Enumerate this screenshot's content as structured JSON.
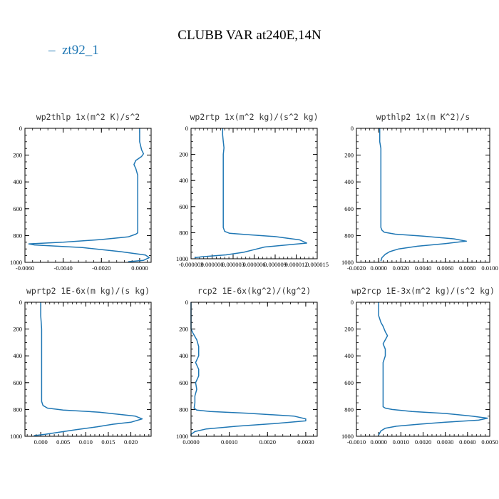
{
  "figure": {
    "title": "CLUBB VAR at240E,14N",
    "legend": {
      "line_symbol": "–",
      "label": "zt92_1",
      "color": "#1f77b4"
    }
  },
  "chart_data": [
    {
      "type": "line",
      "title": "wp2thlp  1x(m^2 K)/s^2",
      "xlim": [
        -0.006,
        0.0006
      ],
      "ylim": [
        0,
        1000
      ],
      "y_inverted": true,
      "xticks": [
        -0.006,
        -0.004,
        -0.002,
        0.0
      ],
      "xtick_labels": [
        "-0.0060",
        "-0.0040",
        "-0.0020",
        "0.0000"
      ],
      "yticks": [
        0,
        200,
        400,
        600,
        800,
        1000
      ],
      "ytick_labels": [
        "0",
        "200",
        "400",
        "600",
        "800",
        "1000"
      ],
      "series": [
        {
          "color": "#1f77b4",
          "x": [
            0.0,
            0.0,
            0.0,
            0.0001,
            0.0002,
            0.0001,
            -0.0002,
            -0.0003,
            -0.0002,
            -0.0001,
            -0.0001,
            -0.0001,
            -0.0001,
            -0.0001,
            -0.0001,
            -0.0001,
            -0.0001,
            -0.0002,
            -0.0006,
            -0.002,
            -0.004,
            -0.0058,
            -0.0055,
            -0.003,
            -0.001,
            0.0003,
            0.0005,
            0.0002,
            -0.0006
          ],
          "y": [
            0,
            50,
            100,
            160,
            190,
            210,
            240,
            270,
            300,
            350,
            400,
            450,
            500,
            600,
            700,
            750,
            780,
            790,
            810,
            830,
            850,
            862,
            870,
            890,
            920,
            945,
            965,
            985,
            995
          ]
        }
      ]
    },
    {
      "type": "line",
      "title": "wp2rtp  1x(m^2 kg)/(s^2 kg)",
      "xlim": [
        -3e-06,
        1.5e-05
      ],
      "ylim": [
        0,
        1000
      ],
      "y_inverted": true,
      "xticks": [
        -3e-06,
        0.0,
        3e-06,
        6e-06,
        9e-06,
        1.2e-05,
        1.5e-05
      ],
      "xtick_labels": [
        "-0.000003",
        "0.000000",
        "0.000003",
        "0.000006",
        "0.000009",
        "0.000012",
        "0.000015"
      ],
      "yticks": [
        0,
        200,
        400,
        600,
        800,
        1000
      ],
      "ytick_labels": [
        "0",
        "200",
        "400",
        "600",
        "800",
        "1000"
      ],
      "series": [
        {
          "color": "#1f77b4",
          "x": [
            1.5e-06,
            1.5e-06,
            1.6e-06,
            1.7e-06,
            1.6e-06,
            1.6e-06,
            1.6e-06,
            1.6e-06,
            1.6e-06,
            1.6e-06,
            1.6e-06,
            1.8e-06,
            2.5e-06,
            5e-06,
            9e-06,
            1.25e-05,
            1.35e-05,
            1.05e-05,
            7.5e-06,
            6e-06,
            4.5e-06,
            2e-06,
            -1.5e-06,
            -2.5e-06
          ],
          "y": [
            0,
            50,
            100,
            150,
            200,
            300,
            400,
            500,
            600,
            700,
            760,
            790,
            805,
            815,
            830,
            855,
            880,
            895,
            910,
            930,
            950,
            970,
            985,
            992
          ]
        }
      ]
    },
    {
      "type": "line",
      "title": "wpthlp2  1x(m K^2)/s",
      "xlim": [
        -0.002,
        0.01
      ],
      "ylim": [
        0,
        1000
      ],
      "y_inverted": true,
      "xticks": [
        -0.002,
        0.0,
        0.002,
        0.004,
        0.006,
        0.008,
        0.01
      ],
      "xtick_labels": [
        "-0.0020",
        "0.0000",
        "0.0020",
        "0.0040",
        "0.0060",
        "0.0080",
        "0.0100"
      ],
      "yticks": [
        0,
        200,
        400,
        600,
        800,
        1000
      ],
      "ytick_labels": [
        "0",
        "200",
        "400",
        "600",
        "800",
        "1000"
      ],
      "series": [
        {
          "color": "#1f77b4",
          "x": [
            0.0001,
            0.0001,
            0.0001,
            0.0002,
            0.0002,
            0.0002,
            0.0002,
            0.0002,
            0.0002,
            0.0002,
            0.0002,
            0.0002,
            0.0003,
            0.0005,
            0.0015,
            0.004,
            0.0068,
            0.0079,
            0.006,
            0.0035,
            0.0018,
            0.001,
            0.0006,
            0.0003,
            0.0002
          ],
          "y": [
            0,
            50,
            100,
            150,
            200,
            250,
            300,
            400,
            500,
            600,
            700,
            740,
            760,
            775,
            790,
            805,
            825,
            842,
            860,
            880,
            900,
            920,
            940,
            965,
            990
          ]
        }
      ]
    },
    {
      "type": "line",
      "title": "wprtp2  1E-6x(m kg)/(s kg)",
      "xlim": [
        -0.0035,
        0.0245
      ],
      "ylim": [
        0,
        1000
      ],
      "y_inverted": true,
      "xticks": [
        0.0,
        0.005,
        0.01,
        0.015,
        0.02
      ],
      "xtick_labels": [
        "0.000",
        "0.005",
        "0.010",
        "0.015",
        "0.020"
      ],
      "yticks": [
        0,
        200,
        400,
        600,
        800,
        1000
      ],
      "ytick_labels": [
        "0",
        "200",
        "400",
        "600",
        "800",
        "1000"
      ],
      "series": [
        {
          "color": "#1f77b4",
          "x": [
            0.0,
            0.0,
            0.0001,
            0.0002,
            0.0002,
            0.0002,
            0.0002,
            0.0002,
            0.0002,
            0.0002,
            0.0005,
            0.0015,
            0.005,
            0.013,
            0.021,
            0.0225,
            0.02,
            0.016,
            0.0125,
            0.008,
            0.004,
            0.001,
            -0.0015
          ],
          "y": [
            0,
            100,
            150,
            200,
            300,
            400,
            500,
            600,
            700,
            740,
            770,
            790,
            805,
            820,
            850,
            870,
            895,
            910,
            930,
            950,
            970,
            985,
            995
          ]
        }
      ]
    },
    {
      "type": "line",
      "title": "rcp2  1E-6x(kg^2)/(kg^2)",
      "xlim": [
        0.0,
        0.0033
      ],
      "ylim": [
        0,
        1000
      ],
      "y_inverted": true,
      "xticks": [
        0.0,
        0.001,
        0.002,
        0.003
      ],
      "xtick_labels": [
        "0.0000",
        "0.0010",
        "0.0020",
        "0.0030"
      ],
      "yticks": [
        0,
        200,
        400,
        600,
        800,
        1000
      ],
      "ytick_labels": [
        "0",
        "200",
        "400",
        "600",
        "800",
        "1000"
      ],
      "series": [
        {
          "color": "#1f77b4",
          "x": [
            0.0,
            0.0,
            0.0,
            5e-05,
            0.00015,
            0.0002,
            0.0002,
            0.00012,
            0.0002,
            0.0002,
            0.00012,
            0.00015,
            0.0001,
            0.0001,
            8e-05,
            0.00015,
            0.0005,
            0.0015,
            0.0027,
            0.003,
            0.003,
            0.0022,
            0.0012,
            0.0004,
            0.0001,
            0.0,
            0.0
          ],
          "y": [
            0,
            100,
            200,
            230,
            280,
            330,
            400,
            450,
            500,
            550,
            600,
            650,
            700,
            750,
            790,
            805,
            815,
            828,
            850,
            870,
            885,
            905,
            925,
            945,
            965,
            985,
            1000
          ]
        }
      ]
    },
    {
      "type": "line",
      "title": "wp2rcp  1E-3x(m^2 kg)/(s^2 kg)",
      "xlim": [
        -0.001,
        0.005
      ],
      "ylim": [
        0,
        1000
      ],
      "y_inverted": true,
      "xticks": [
        -0.001,
        0.0,
        0.001,
        0.002,
        0.003,
        0.004,
        0.005
      ],
      "xtick_labels": [
        "-0.0010",
        "0.0000",
        "0.0010",
        "0.0020",
        "0.0030",
        "0.0040",
        "0.0050"
      ],
      "yticks": [
        0,
        200,
        400,
        600,
        800,
        1000
      ],
      "ytick_labels": [
        "0",
        "200",
        "400",
        "600",
        "800",
        "1000"
      ],
      "series": [
        {
          "color": "#1f77b4",
          "x": [
            0.0,
            0.0,
            0.0001,
            0.0002,
            0.0003,
            0.0004,
            0.0003,
            0.0002,
            0.0003,
            0.0003,
            0.0002,
            0.0002,
            0.0002,
            0.0002,
            0.0002,
            0.0002,
            0.0003,
            0.0006,
            0.0015,
            0.003,
            0.0042,
            0.0049,
            0.0045,
            0.003,
            0.0018,
            0.0008,
            0.0003,
            0.0001,
            0.0
          ],
          "y": [
            0,
            100,
            150,
            180,
            220,
            250,
            280,
            310,
            350,
            400,
            450,
            500,
            600,
            700,
            750,
            780,
            790,
            800,
            815,
            830,
            850,
            865,
            880,
            895,
            910,
            925,
            940,
            960,
            990
          ]
        }
      ]
    }
  ]
}
